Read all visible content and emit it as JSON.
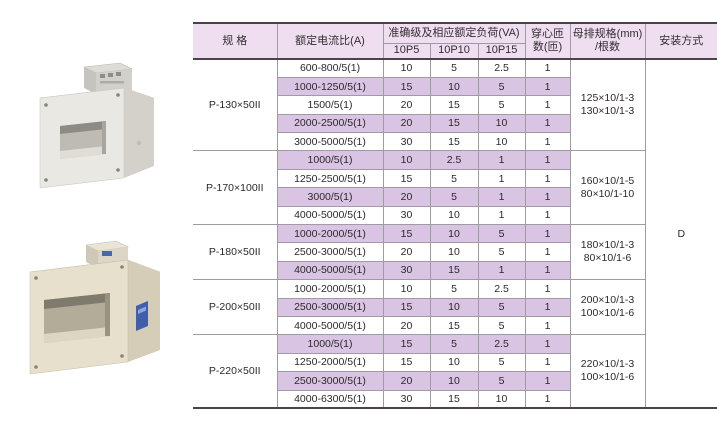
{
  "colors": {
    "header_bg": "#efdeef",
    "row_stripe": "#d9c5e3",
    "border_dark": "#4a4347",
    "border_light": "#a09aa2",
    "ct_white_body": "#eae8e2",
    "ct_beige_body": "#e7e0cd",
    "ct_label_blue": "#3f5fae"
  },
  "table": {
    "headers": {
      "spec": "规 格",
      "ratio": "额定电流比(A)",
      "accuracy_group": "准确级及相应额定负荷(VA)",
      "p_cols": [
        "10P5",
        "10P10",
        "10P15"
      ],
      "turns_line1": "穿心匝",
      "turns_line2": "数(匝)",
      "busbar_line1": "母排规格(mm)",
      "busbar_line2": "/根数",
      "install": "安装方式"
    },
    "install_value": "D",
    "groups": [
      {
        "spec": "P-130×50II",
        "busbar": [
          "125×10/1-3",
          "130×10/1-3"
        ],
        "rows": [
          {
            "ratio": "600-800/5(1)",
            "p5": "10",
            "p10": "5",
            "p15": "2.5",
            "turns": "1"
          },
          {
            "ratio": "1000-1250/5(1)",
            "p5": "15",
            "p10": "10",
            "p15": "5",
            "turns": "1"
          },
          {
            "ratio": "1500/5(1)",
            "p5": "20",
            "p10": "15",
            "p15": "5",
            "turns": "1"
          },
          {
            "ratio": "2000-2500/5(1)",
            "p5": "20",
            "p10": "15",
            "p15": "10",
            "turns": "1"
          },
          {
            "ratio": "3000-5000/5(1)",
            "p5": "30",
            "p10": "15",
            "p15": "10",
            "turns": "1"
          }
        ]
      },
      {
        "spec": "P-170×100II",
        "busbar": [
          "160×10/1-5",
          "80×10/1-10"
        ],
        "rows": [
          {
            "ratio": "1000/5(1)",
            "p5": "10",
            "p10": "2.5",
            "p15": "1",
            "turns": "1"
          },
          {
            "ratio": "1250-2500/5(1)",
            "p5": "15",
            "p10": "5",
            "p15": "1",
            "turns": "1"
          },
          {
            "ratio": "3000/5(1)",
            "p5": "20",
            "p10": "5",
            "p15": "1",
            "turns": "1"
          },
          {
            "ratio": "4000-5000/5(1)",
            "p5": "30",
            "p10": "10",
            "p15": "1",
            "turns": "1"
          }
        ]
      },
      {
        "spec": "P-180×50II",
        "busbar": [
          "180×10/1-3",
          "80×10/1-6"
        ],
        "rows": [
          {
            "ratio": "1000-2000/5(1)",
            "p5": "15",
            "p10": "10",
            "p15": "5",
            "turns": "1"
          },
          {
            "ratio": "2500-3000/5(1)",
            "p5": "20",
            "p10": "10",
            "p15": "5",
            "turns": "1"
          },
          {
            "ratio": "4000-5000/5(1)",
            "p5": "30",
            "p10": "15",
            "p15": "1",
            "turns": "1"
          }
        ]
      },
      {
        "spec": "P-200×50II",
        "busbar": [
          "200×10/1-3",
          "100×10/1-6"
        ],
        "rows": [
          {
            "ratio": "1000-2000/5(1)",
            "p5": "10",
            "p10": "5",
            "p15": "2.5",
            "turns": "1"
          },
          {
            "ratio": "2500-3000/5(1)",
            "p5": "15",
            "p10": "10",
            "p15": "5",
            "turns": "1"
          },
          {
            "ratio": "4000-5000/5(1)",
            "p5": "20",
            "p10": "15",
            "p15": "5",
            "turns": "1"
          }
        ]
      },
      {
        "spec": "P-220×50II",
        "busbar": [
          "220×10/1-3",
          "100×10/1-6"
        ],
        "rows": [
          {
            "ratio": "1000/5(1)",
            "p5": "15",
            "p10": "5",
            "p15": "2.5",
            "turns": "1"
          },
          {
            "ratio": "1250-2000/5(1)",
            "p5": "15",
            "p10": "10",
            "p15": "5",
            "turns": "1"
          },
          {
            "ratio": "2500-3000/5(1)",
            "p5": "20",
            "p10": "10",
            "p15": "5",
            "turns": "1"
          },
          {
            "ratio": "4000-6300/5(1)",
            "p5": "30",
            "p10": "15",
            "p15": "10",
            "turns": "1"
          }
        ]
      }
    ]
  }
}
